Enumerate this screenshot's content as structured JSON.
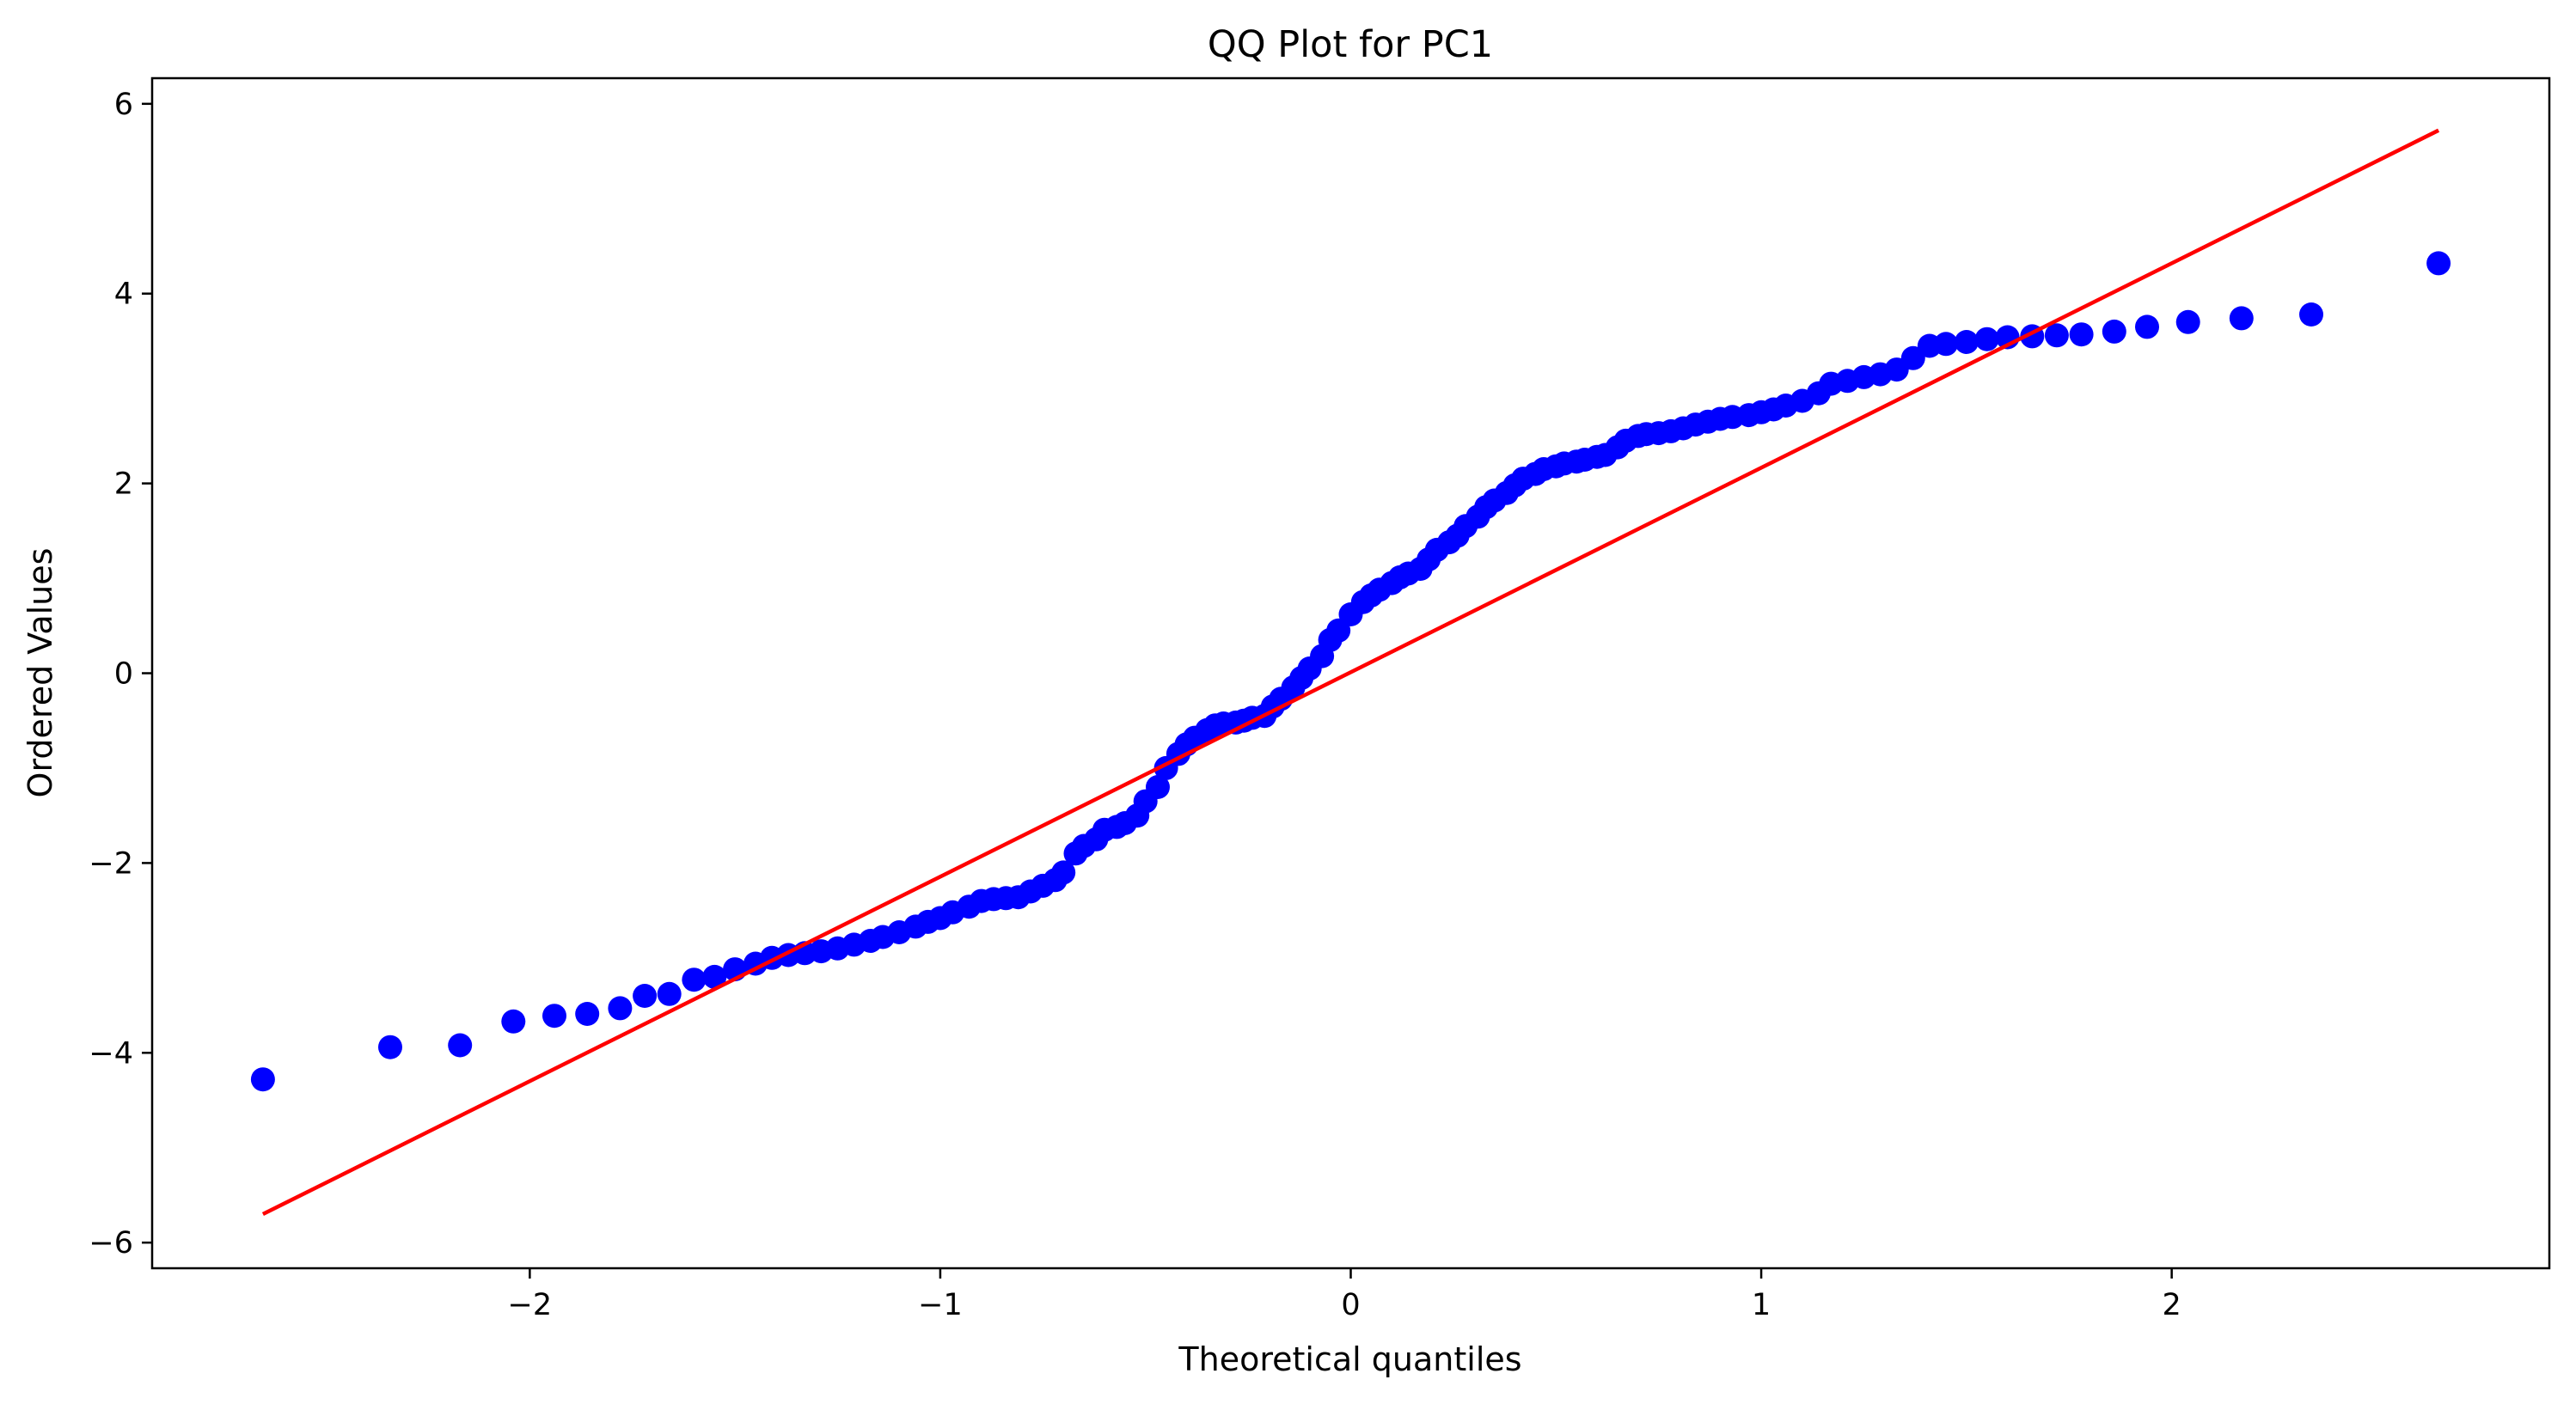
{
  "chart_data": {
    "type": "scatter",
    "title": "QQ Plot for PC1",
    "xlabel": "Theoretical quantiles",
    "ylabel": "Ordered Values",
    "xlim": [
      -2.92,
      2.92
    ],
    "ylim": [
      -6.27,
      6.27
    ],
    "xticks": [
      -2,
      -1,
      0,
      1,
      2
    ],
    "yticks": [
      -6,
      -4,
      -2,
      0,
      2,
      4,
      6
    ],
    "xtick_labels": [
      "−2",
      "−1",
      "0",
      "1",
      "2"
    ],
    "ytick_labels": [
      "−6",
      "−4",
      "−2",
      "0",
      "2",
      "4",
      "6"
    ],
    "grid": false,
    "series": [
      {
        "kind": "points",
        "color": "#0000ff",
        "x": [
          -2.65,
          -2.34,
          -2.17,
          -2.04,
          -1.94,
          -1.86,
          -1.78,
          -1.72,
          -1.66,
          -1.6,
          -1.55,
          -1.5,
          -1.45,
          -1.41,
          -1.37,
          -1.33,
          -1.29,
          -1.25,
          -1.21,
          -1.17,
          -1.14,
          -1.1,
          -1.06,
          -1.03,
          -1.0,
          -0.97,
          -0.93,
          -0.9,
          -0.87,
          -0.84,
          -0.81,
          -0.78,
          -0.75,
          -0.72,
          -0.7,
          -0.67,
          -0.65,
          -0.62,
          -0.6,
          -0.57,
          -0.55,
          -0.52,
          -0.5,
          -0.47,
          -0.45,
          -0.42,
          -0.4,
          -0.38,
          -0.35,
          -0.33,
          -0.31,
          -0.28,
          -0.26,
          -0.24,
          -0.21,
          -0.19,
          -0.17,
          -0.14,
          -0.12,
          -0.1,
          -0.07,
          -0.05,
          -0.03,
          0.0,
          0.03,
          0.05,
          0.07,
          0.1,
          0.12,
          0.14,
          0.17,
          0.19,
          0.21,
          0.24,
          0.26,
          0.28,
          0.31,
          0.33,
          0.35,
          0.38,
          0.4,
          0.42,
          0.45,
          0.47,
          0.5,
          0.52,
          0.55,
          0.57,
          0.6,
          0.62,
          0.65,
          0.67,
          0.7,
          0.72,
          0.75,
          0.78,
          0.81,
          0.84,
          0.87,
          0.9,
          0.93,
          0.97,
          1.0,
          1.03,
          1.06,
          1.1,
          1.14,
          1.17,
          1.21,
          1.25,
          1.29,
          1.33,
          1.37,
          1.41,
          1.45,
          1.5,
          1.55,
          1.6,
          1.66,
          1.72,
          1.78,
          1.86,
          1.94,
          2.04,
          2.17,
          2.34,
          2.65
        ],
        "y": [
          -4.28,
          -3.94,
          -3.92,
          -3.67,
          -3.61,
          -3.59,
          -3.53,
          -3.4,
          -3.38,
          -3.23,
          -3.2,
          -3.12,
          -3.06,
          -3.0,
          -2.97,
          -2.95,
          -2.93,
          -2.9,
          -2.86,
          -2.82,
          -2.78,
          -2.73,
          -2.67,
          -2.62,
          -2.58,
          -2.52,
          -2.46,
          -2.4,
          -2.38,
          -2.37,
          -2.36,
          -2.3,
          -2.24,
          -2.18,
          -2.1,
          -1.9,
          -1.82,
          -1.75,
          -1.65,
          -1.62,
          -1.58,
          -1.5,
          -1.35,
          -1.2,
          -1.0,
          -0.85,
          -0.75,
          -0.68,
          -0.6,
          -0.55,
          -0.53,
          -0.52,
          -0.5,
          -0.47,
          -0.45,
          -0.35,
          -0.27,
          -0.15,
          -0.05,
          0.05,
          0.18,
          0.35,
          0.45,
          0.62,
          0.75,
          0.82,
          0.88,
          0.95,
          1.01,
          1.05,
          1.1,
          1.2,
          1.3,
          1.38,
          1.45,
          1.55,
          1.65,
          1.75,
          1.82,
          1.9,
          1.98,
          2.05,
          2.1,
          2.15,
          2.18,
          2.21,
          2.23,
          2.25,
          2.28,
          2.3,
          2.38,
          2.45,
          2.5,
          2.52,
          2.53,
          2.55,
          2.58,
          2.62,
          2.65,
          2.68,
          2.7,
          2.72,
          2.75,
          2.78,
          2.82,
          2.87,
          2.95,
          3.05,
          3.08,
          3.12,
          3.15,
          3.2,
          3.32,
          3.45,
          3.47,
          3.49,
          3.52,
          3.54,
          3.55,
          3.56,
          3.57,
          3.6,
          3.65,
          3.7,
          3.74,
          3.78,
          4.32
        ]
      },
      {
        "kind": "line",
        "color": "#ff0000",
        "x": [
          -2.65,
          2.65
        ],
        "y": [
          -5.7,
          5.72
        ]
      }
    ]
  }
}
